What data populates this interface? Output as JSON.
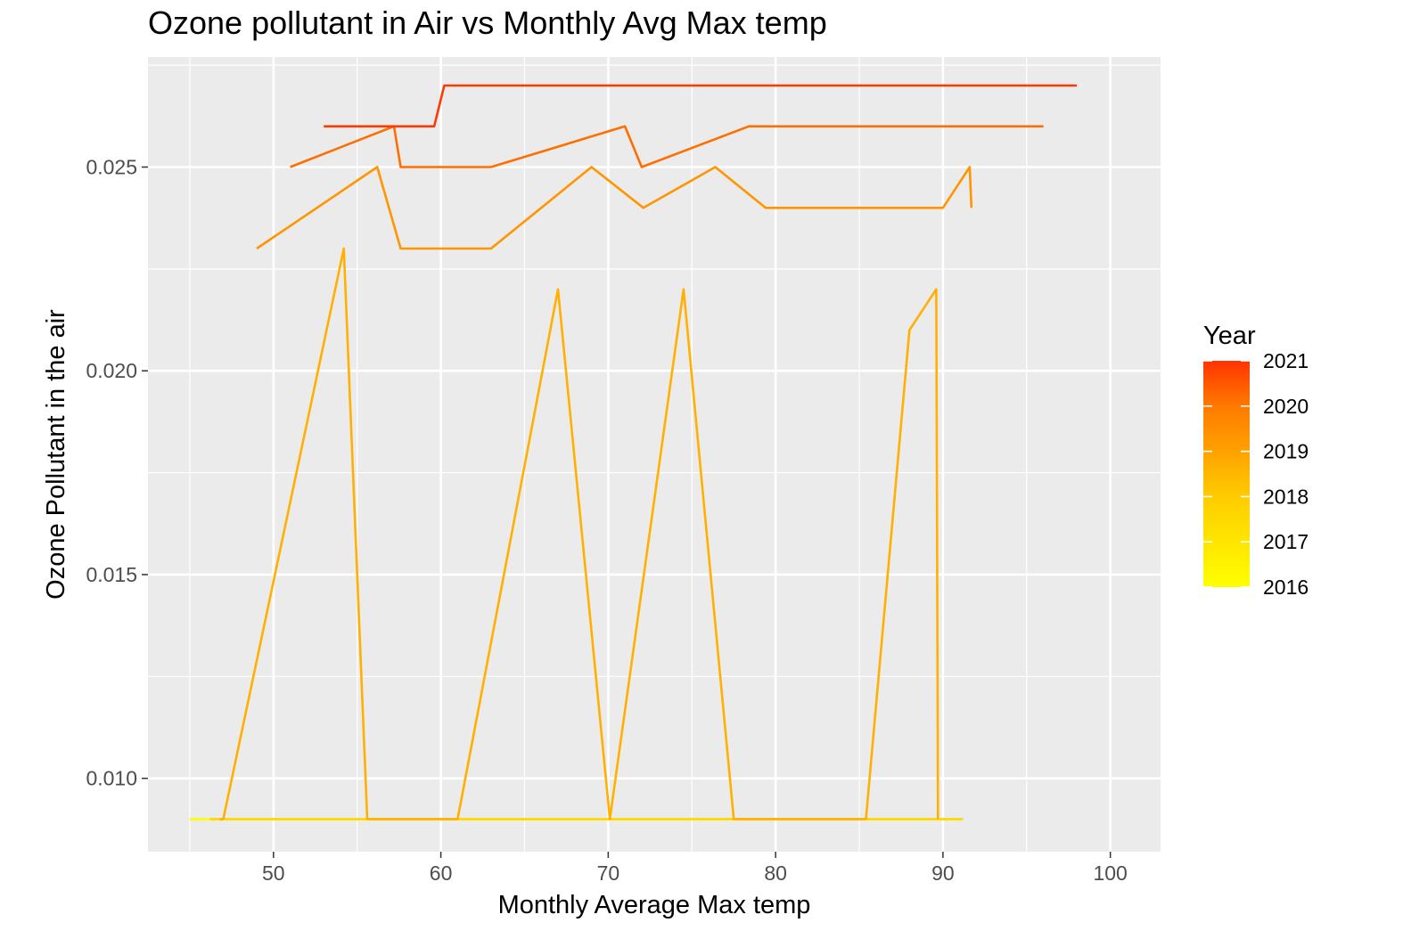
{
  "chart_data": {
    "type": "line",
    "title": "Ozone pollutant in Air vs Monthly Avg Max temp",
    "xlabel": "Monthly Average Max temp",
    "ylabel": "Ozone Pollutant in the air",
    "xlim": [
      42.5,
      103
    ],
    "ylim": [
      0.0082,
      0.0277
    ],
    "x_ticks": [
      50,
      60,
      70,
      80,
      90,
      100
    ],
    "y_ticks": [
      0.01,
      0.015,
      0.02,
      0.025
    ],
    "x_tick_labels": [
      "50",
      "60",
      "70",
      "80",
      "90",
      "100"
    ],
    "y_tick_labels": [
      "0.010",
      "0.015",
      "0.020",
      "0.025"
    ],
    "grid": true,
    "legend": {
      "title": "Year",
      "placement": "right",
      "type": "colorbar",
      "range": [
        2016,
        2021
      ],
      "labels": [
        "2021",
        "2020",
        "2019",
        "2018",
        "2017",
        "2016"
      ],
      "colors": {
        "2016": "#ffff00",
        "2017": "#ffd700",
        "2018": "#ffaa00",
        "2019": "#ff8c00",
        "2020": "#ff6a00",
        "2021": "#ff3300"
      }
    },
    "series": [
      {
        "year": 2016,
        "color": "#ffff00",
        "x": [
          45,
          91
        ],
        "y": [
          0.009,
          0.009
        ]
      },
      {
        "year": 2017,
        "color": "#ffd700",
        "x": [
          46.2,
          91.2
        ],
        "y": [
          0.009,
          0.009
        ]
      },
      {
        "year": 2018,
        "color": "#ffb000",
        "x": [
          46.8,
          47.0,
          54.2,
          55.6,
          61.0,
          67.0,
          70.1,
          74.5,
          77.5,
          85.4,
          88.0,
          89.6,
          89.7
        ],
        "y": [
          0.009,
          0.009,
          0.023,
          0.009,
          0.009,
          0.022,
          0.009,
          0.022,
          0.009,
          0.009,
          0.021,
          0.022,
          0.009
        ]
      },
      {
        "year": 2019,
        "color": "#ff9500",
        "x": [
          49.0,
          56.2,
          57.6,
          63.0,
          69.0,
          72.1,
          76.4,
          79.4,
          90.0,
          91.6,
          91.7
        ],
        "y": [
          0.023,
          0.025,
          0.023,
          0.023,
          0.025,
          0.024,
          0.025,
          0.024,
          0.024,
          0.025,
          0.024
        ]
      },
      {
        "year": 2020,
        "color": "#ff6e00",
        "x": [
          51.0,
          57.2,
          57.6,
          63.0,
          71.0,
          72.0,
          78.4,
          96.0
        ],
        "y": [
          0.025,
          0.026,
          0.025,
          0.025,
          0.026,
          0.025,
          0.026,
          0.026
        ]
      },
      {
        "year": 2021,
        "color": "#ff3a00",
        "x": [
          53.0,
          59.6,
          60.2,
          98.0
        ],
        "y": [
          0.026,
          0.026,
          0.027,
          0.027
        ]
      }
    ]
  }
}
